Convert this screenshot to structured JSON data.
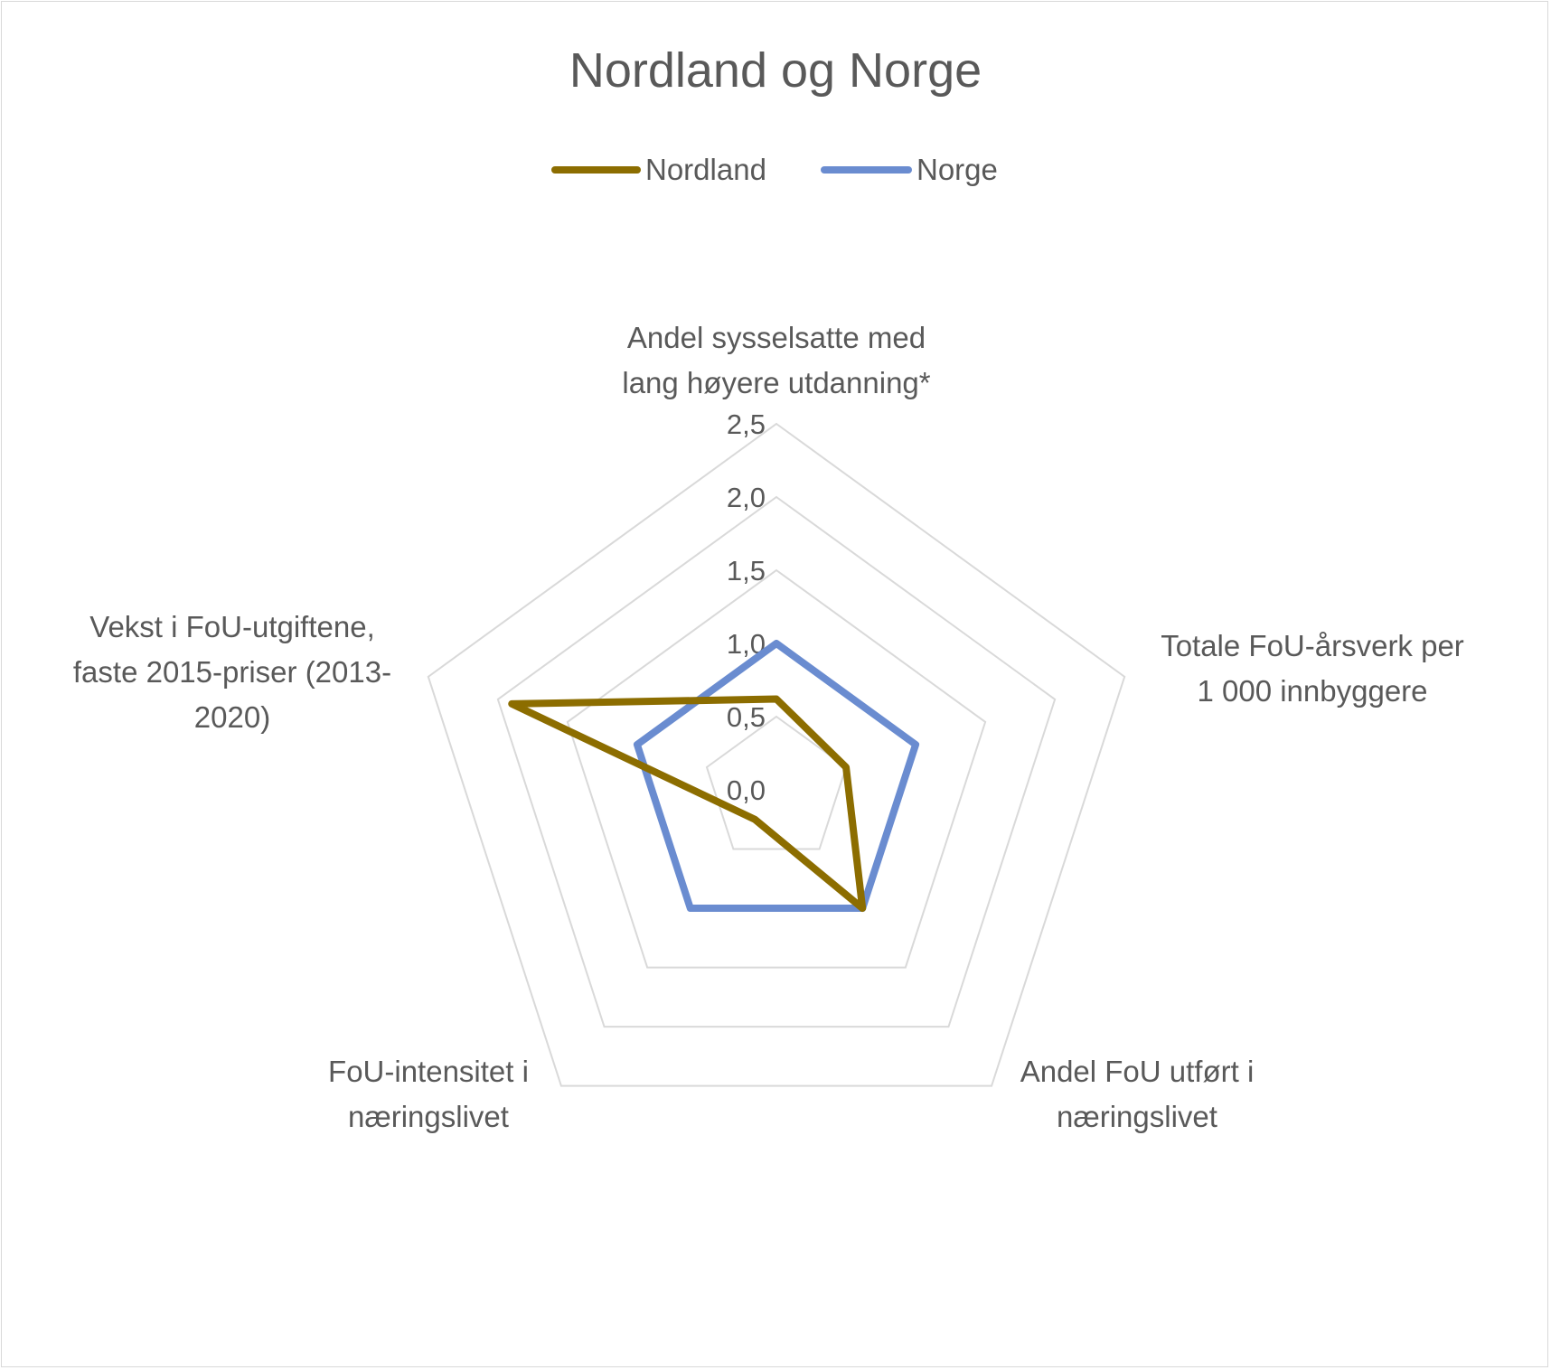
{
  "chart_data": {
    "type": "radar",
    "title": "Nordland og Norge",
    "legend_position": "top",
    "grid": true,
    "rlim": [
      0,
      2.5
    ],
    "ticks": [
      "0,0",
      "0,5",
      "1,0",
      "1,5",
      "2,0",
      "2,5"
    ],
    "tick_values": [
      0,
      0.5,
      1.0,
      1.5,
      2.0,
      2.5
    ],
    "categories": [
      {
        "lines": [
          "Andel sysselsatte med",
          "lang høyere utdanning*"
        ]
      },
      {
        "lines": [
          "Totale FoU-årsverk per",
          "1 000 innbyggere"
        ]
      },
      {
        "lines": [
          "Andel FoU utført i",
          "næringslivet"
        ]
      },
      {
        "lines": [
          "FoU-intensitet i",
          "næringslivet"
        ]
      },
      {
        "lines": [
          "Vekst i FoU-utgiftene,",
          "faste 2015-priser (2013-",
          "2020)"
        ]
      }
    ],
    "series": [
      {
        "name": "Nordland",
        "color": "#8c6d00",
        "values": [
          0.62,
          0.5,
          1.0,
          0.25,
          1.9
        ]
      },
      {
        "name": "Norge",
        "color": "#6a8cd0",
        "values": [
          1.0,
          1.0,
          1.0,
          1.0,
          1.0
        ]
      }
    ]
  }
}
